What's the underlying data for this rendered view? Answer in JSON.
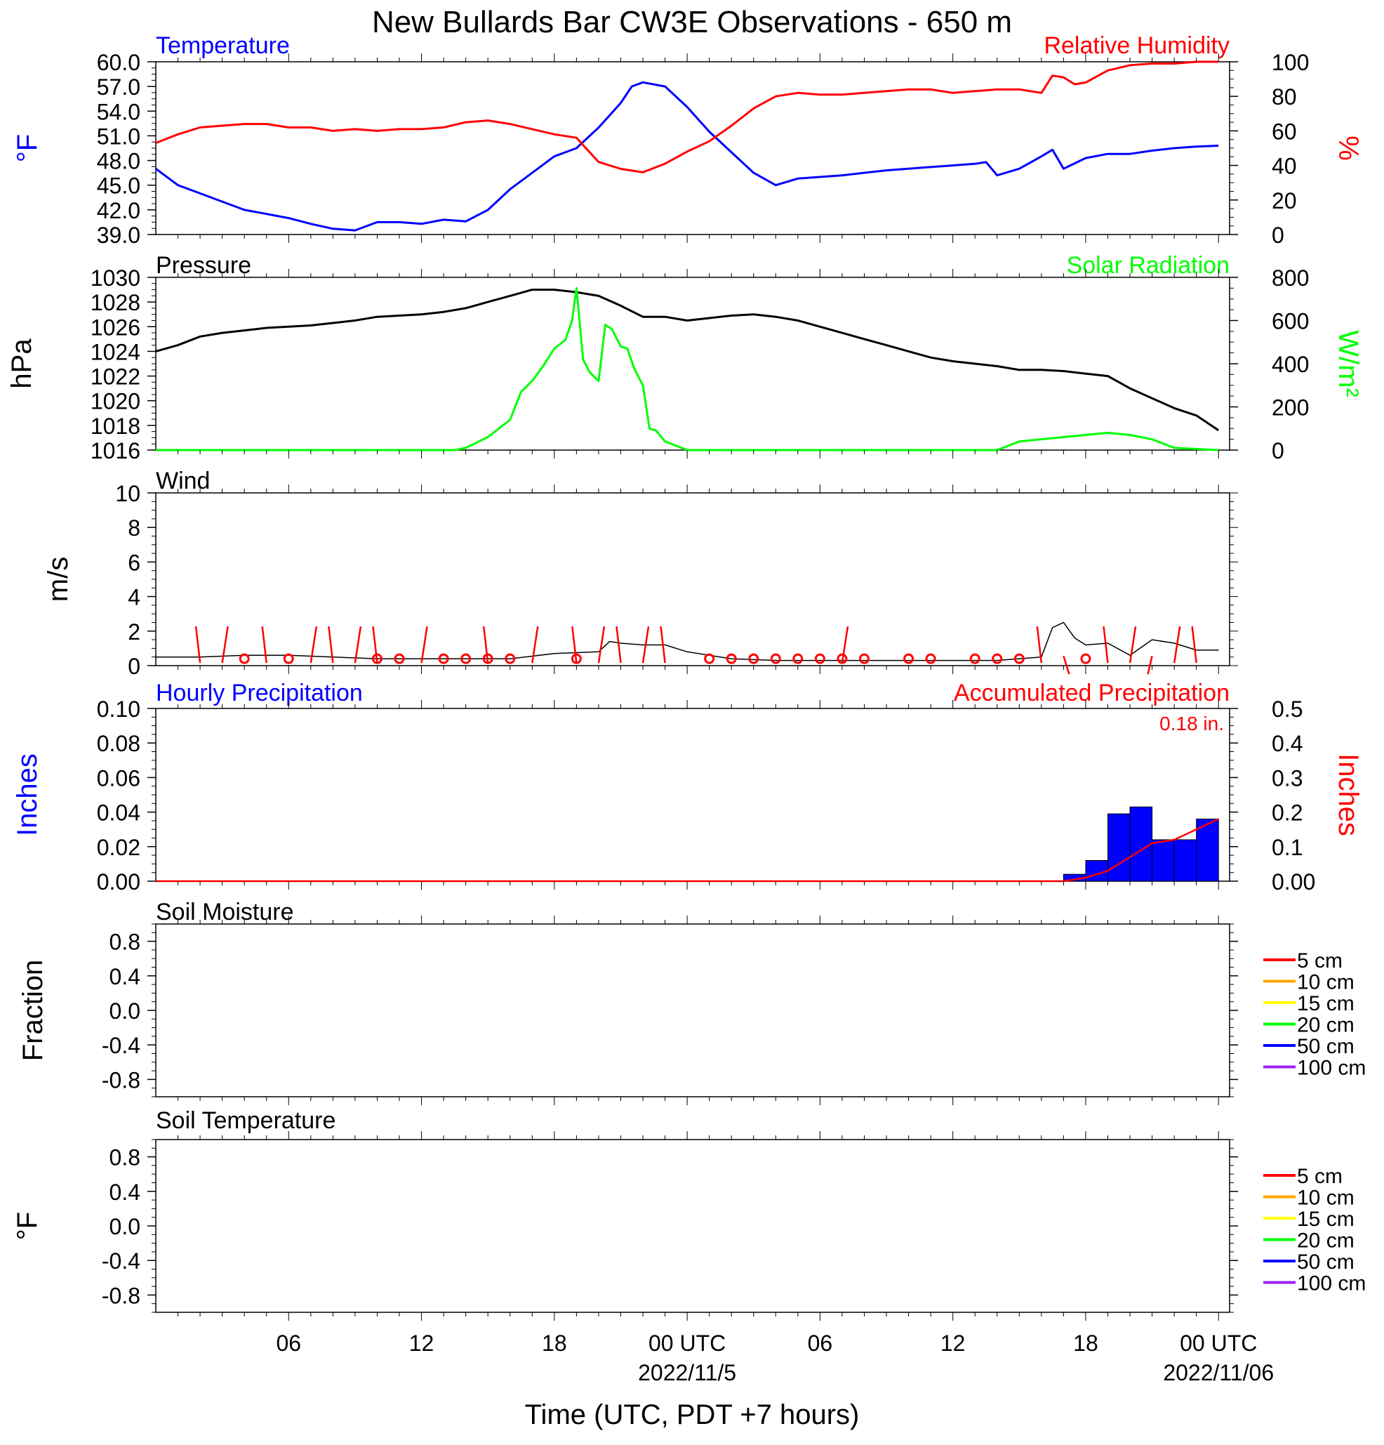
{
  "title": "New Bullards Bar CW3E Observations - 650 m",
  "x_axis": {
    "label": "Time (UTC, PDT +7 hours)",
    "ticks": [
      {
        "hour": 6,
        "label": "06",
        "date": ""
      },
      {
        "hour": 12,
        "label": "12",
        "date": ""
      },
      {
        "hour": 18,
        "label": "18",
        "date": ""
      },
      {
        "hour": 24,
        "label": "00 UTC",
        "date": "2022/11/5"
      },
      {
        "hour": 30,
        "label": "06",
        "date": ""
      },
      {
        "hour": 36,
        "label": "12",
        "date": ""
      },
      {
        "hour": 42,
        "label": "18",
        "date": ""
      },
      {
        "hour": 48,
        "label": "00 UTC",
        "date": "2022/11/06"
      }
    ]
  },
  "colors": {
    "temperature": "#0000ff",
    "humidity": "#ff0000",
    "pressure": "#000000",
    "solar": "#00ff00",
    "wind": "#000000",
    "wind_barb": "#ff0000",
    "hourly_precip": "#0000ff",
    "accum_precip": "#ff0000",
    "legend_5cm": "#ff0000",
    "legend_10cm": "#ffa500",
    "legend_15cm": "#ffff00",
    "legend_20cm": "#00ff00",
    "legend_50cm": "#0000ff",
    "legend_100cm": "#a020f0"
  },
  "panels": {
    "temp_rh": {
      "left_title": "Temperature",
      "right_title": "Relative Humidity",
      "left_unit": "°F",
      "right_unit": "%",
      "left_ticks": [
        "60.0",
        "57.0",
        "54.0",
        "51.0",
        "48.0",
        "45.0",
        "42.0",
        "39.0"
      ],
      "right_ticks": [
        "100",
        "80",
        "60",
        "40",
        "20",
        "0"
      ]
    },
    "pressure_solar": {
      "left_title": "Pressure",
      "right_title": "Solar Radiation",
      "left_unit": "hPa",
      "right_unit": "W/m²",
      "left_ticks": [
        "1030",
        "1028",
        "1026",
        "1024",
        "1022",
        "1020",
        "1018",
        "1016"
      ],
      "right_ticks": [
        "800",
        "600",
        "400",
        "200",
        "0"
      ]
    },
    "wind": {
      "title": "Wind",
      "unit": "m/s",
      "ticks": [
        "10",
        "8",
        "6",
        "4",
        "2",
        "0"
      ]
    },
    "precip": {
      "left_title": "Hourly Precipitation",
      "right_title": "Accumulated Precipitation",
      "total": "0.18 in.",
      "left_unit": "Inches",
      "right_unit": "Inches",
      "left_ticks": [
        "0.10",
        "0.08",
        "0.06",
        "0.04",
        "0.02",
        "0.00"
      ],
      "right_ticks": [
        "0.5",
        "0.4",
        "0.3",
        "0.2",
        "0.1",
        "0.00"
      ]
    },
    "soil_moisture": {
      "title": "Soil Moisture",
      "unit": "Fraction",
      "ticks": [
        "0.8",
        "0.4",
        "0.0",
        "-0.4",
        "-0.8"
      ],
      "legend": [
        "5 cm",
        "10 cm",
        "15 cm",
        "20 cm",
        "50 cm",
        "100 cm"
      ]
    },
    "soil_temp": {
      "title": "Soil Temperature",
      "unit": "°F",
      "ticks": [
        "0.8",
        "0.4",
        "0.0",
        "-0.4",
        "-0.8"
      ],
      "legend": [
        "5 cm",
        "10 cm",
        "15 cm",
        "20 cm",
        "50 cm",
        "100 cm"
      ]
    }
  },
  "chart_data": [
    {
      "type": "line",
      "title": "Temperature",
      "ylabel": "°F",
      "ylim": [
        39,
        60
      ],
      "x": [
        0,
        1,
        2,
        3,
        4,
        5,
        6,
        7,
        8,
        9,
        10,
        11,
        12,
        13,
        14,
        15,
        16,
        17,
        18,
        19,
        20,
        21,
        21.5,
        22,
        23,
        24,
        25,
        26,
        27,
        28,
        29,
        30,
        31,
        32,
        33,
        34,
        35,
        36,
        37,
        37.5,
        38,
        39,
        40,
        40.5,
        41,
        42,
        43,
        44,
        45,
        46,
        47,
        48
      ],
      "y": [
        47,
        45,
        44,
        43,
        42,
        41.5,
        41,
        40.3,
        39.7,
        39.5,
        40.5,
        40.5,
        40.3,
        40.8,
        40.6,
        42,
        44.5,
        46.5,
        48.5,
        49.5,
        52,
        55,
        57,
        57.5,
        57,
        54.5,
        51.5,
        49,
        46.5,
        45,
        45.8,
        46,
        46.2,
        46.5,
        46.8,
        47,
        47.2,
        47.4,
        47.6,
        47.8,
        46.2,
        47,
        48.5,
        49.3,
        47,
        48.3,
        48.8,
        48.8,
        49.2,
        49.5,
        49.7,
        49.8
      ],
      "series_name": "Temperature"
    },
    {
      "type": "line",
      "title": "Relative Humidity",
      "ylabel": "%",
      "ylim": [
        0,
        100
      ],
      "x": [
        0,
        1,
        2,
        3,
        4,
        5,
        6,
        7,
        8,
        9,
        10,
        11,
        12,
        13,
        14,
        15,
        16,
        17,
        18,
        19,
        20,
        21,
        22,
        23,
        24,
        25,
        26,
        27,
        28,
        29,
        30,
        31,
        32,
        33,
        34,
        35,
        36,
        37,
        38,
        39,
        40,
        40.5,
        41,
        41.5,
        42,
        43,
        44,
        45,
        46,
        47,
        48
      ],
      "y": [
        53,
        58,
        62,
        63,
        64,
        64,
        62,
        62,
        60,
        61,
        60,
        61,
        61,
        62,
        65,
        66,
        64,
        61,
        58,
        56,
        42,
        38,
        36,
        41,
        48,
        54,
        63,
        73,
        80,
        82,
        81,
        81,
        82,
        83,
        84,
        84,
        82,
        83,
        84,
        84,
        82,
        92,
        91,
        87,
        88,
        95,
        98,
        99,
        99,
        100,
        100
      ],
      "series_name": "Relative Humidity"
    },
    {
      "type": "line",
      "title": "Pressure",
      "ylabel": "hPa",
      "ylim": [
        1016,
        1030
      ],
      "x": [
        0,
        1,
        2,
        3,
        4,
        5,
        6,
        7,
        8,
        9,
        10,
        11,
        12,
        13,
        14,
        15,
        16,
        17,
        18,
        19,
        20,
        21,
        22,
        23,
        24,
        25,
        26,
        27,
        28,
        29,
        30,
        31,
        32,
        33,
        34,
        35,
        36,
        37,
        38,
        39,
        40,
        41,
        42,
        43,
        44,
        45,
        46,
        47,
        48
      ],
      "y": [
        1024,
        1024.5,
        1025.2,
        1025.5,
        1025.7,
        1025.9,
        1026,
        1026.1,
        1026.3,
        1026.5,
        1026.8,
        1026.9,
        1027,
        1027.2,
        1027.5,
        1028,
        1028.5,
        1029,
        1029,
        1028.8,
        1028.5,
        1027.7,
        1026.8,
        1026.8,
        1026.5,
        1026.7,
        1026.9,
        1027,
        1026.8,
        1026.5,
        1026,
        1025.5,
        1025,
        1024.5,
        1024,
        1023.5,
        1023.2,
        1023,
        1022.8,
        1022.5,
        1022.5,
        1022.4,
        1022.2,
        1022,
        1021,
        1020.2,
        1019.4,
        1018.8,
        1017.6
      ],
      "series_name": "Pressure"
    },
    {
      "type": "area",
      "title": "Solar Radiation",
      "ylabel": "W/m²",
      "ylim": [
        0,
        800
      ],
      "x": [
        0,
        13.5,
        14,
        15,
        16,
        16.5,
        17,
        17.5,
        18,
        18.5,
        18.8,
        19,
        19.3,
        19.6,
        20,
        20.3,
        20.6,
        21,
        21.3,
        21.6,
        22,
        22.3,
        22.6,
        23,
        24,
        25,
        38,
        38.5,
        39,
        40,
        41,
        42,
        43,
        44,
        45,
        46,
        48
      ],
      "y": [
        0,
        0,
        10,
        60,
        140,
        270,
        320,
        390,
        470,
        510,
        600,
        750,
        420,
        360,
        320,
        580,
        560,
        480,
        470,
        380,
        300,
        100,
        90,
        40,
        0,
        0,
        0,
        20,
        40,
        50,
        60,
        70,
        80,
        70,
        50,
        10,
        0
      ]
    },
    {
      "type": "line",
      "title": "Wind",
      "ylabel": "m/s",
      "ylim": [
        0,
        10
      ],
      "x": [
        0,
        2,
        4,
        6,
        8,
        10,
        12,
        14,
        16,
        18,
        20,
        20.5,
        21,
        22,
        23,
        24,
        26,
        28,
        30,
        32,
        34,
        36,
        38,
        40,
        40.5,
        41,
        41.5,
        42,
        43,
        44,
        45,
        46,
        47,
        48
      ],
      "y": [
        0.5,
        0.5,
        0.6,
        0.6,
        0.5,
        0.4,
        0.4,
        0.4,
        0.4,
        0.7,
        0.8,
        1.4,
        1.3,
        1.2,
        1.2,
        0.8,
        0.4,
        0.3,
        0.3,
        0.3,
        0.3,
        0.3,
        0.3,
        0.5,
        2.2,
        2.5,
        1.6,
        1.2,
        1.3,
        0.6,
        1.5,
        1.3,
        0.9,
        0.9
      ]
    },
    {
      "type": "bar",
      "title": "Hourly Precipitation",
      "ylabel": "Inches",
      "ylim": [
        0,
        0.1
      ],
      "categories": [
        41,
        42,
        43,
        44,
        45,
        46,
        47
      ],
      "values": [
        0.004,
        0.012,
        0.039,
        0.043,
        0.024,
        0.024,
        0.036
      ]
    },
    {
      "type": "line",
      "title": "Accumulated Precipitation",
      "ylabel": "Inches",
      "ylim": [
        0,
        0.5
      ],
      "x": [
        0,
        41,
        42,
        43,
        44,
        45,
        46,
        47,
        48
      ],
      "y": [
        0,
        0,
        0.01,
        0.03,
        0.07,
        0.11,
        0.12,
        0.15,
        0.18
      ]
    }
  ]
}
